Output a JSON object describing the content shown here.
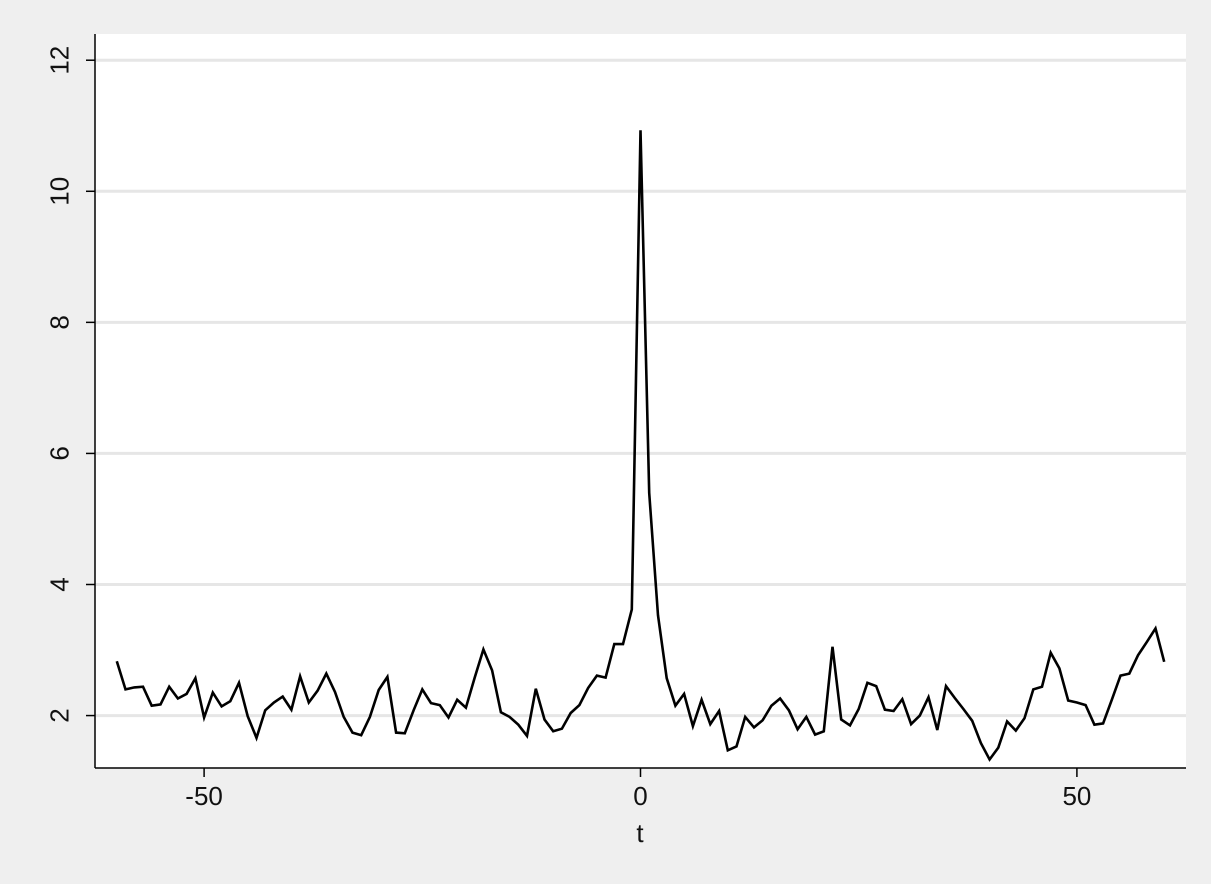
{
  "chart_data": {
    "type": "line",
    "title": "",
    "xlabel": "t",
    "ylabel": "",
    "xlim": [
      -62.5,
      62.5
    ],
    "ylim": [
      1.2,
      12.4
    ],
    "xticks": [
      -50,
      0,
      50
    ],
    "yticks": [
      2,
      4,
      6,
      8,
      10,
      12
    ],
    "grid": true,
    "legend": "none",
    "colors": {
      "background": "#efefef",
      "plot_area": "#ffffff",
      "grid": "#e6e6e6",
      "line": "#000000",
      "axis": "#000000"
    },
    "series": [
      {
        "name": "",
        "x": [
          -60,
          -59,
          -58,
          -57,
          -56,
          -55,
          -54,
          -53,
          -52,
          -51,
          -50,
          -49,
          -48,
          -47,
          -46,
          -45,
          -44,
          -43,
          -42,
          -41,
          -40,
          -39,
          -38,
          -37,
          -36,
          -35,
          -34,
          -33,
          -32,
          -31,
          -30,
          -29,
          -28,
          -27,
          -26,
          -25,
          -24,
          -23,
          -22,
          -21,
          -20,
          -19,
          -18,
          -17,
          -16,
          -15,
          -14,
          -13,
          -12,
          -11,
          -10,
          -9,
          -8,
          -7,
          -6,
          -5,
          -4,
          -3,
          -2,
          -1,
          0,
          1,
          2,
          3,
          4,
          5,
          6,
          7,
          8,
          9,
          10,
          11,
          12,
          13,
          14,
          15,
          16,
          17,
          18,
          19,
          20,
          21,
          22,
          23,
          24,
          25,
          26,
          27,
          28,
          29,
          30,
          31,
          32,
          33,
          34,
          35,
          36,
          37,
          38,
          39,
          40,
          41,
          42,
          43,
          44,
          45,
          46,
          47,
          48,
          49,
          50,
          51,
          52,
          53,
          54,
          55,
          56,
          57,
          58,
          59,
          60
        ],
        "values": [
          2.83,
          2.4,
          2.43,
          2.44,
          2.15,
          2.17,
          2.44,
          2.26,
          2.33,
          2.57,
          1.97,
          2.35,
          2.14,
          2.22,
          2.5,
          1.99,
          1.66,
          2.08,
          2.2,
          2.29,
          2.09,
          2.6,
          2.2,
          2.38,
          2.64,
          2.36,
          1.98,
          1.74,
          1.7,
          1.98,
          2.39,
          2.59,
          1.74,
          1.73,
          2.08,
          2.4,
          2.19,
          2.16,
          1.97,
          2.24,
          2.12,
          2.58,
          3.01,
          2.69,
          2.05,
          1.98,
          1.86,
          1.69,
          2.41,
          1.94,
          1.76,
          1.8,
          2.04,
          2.16,
          2.42,
          2.61,
          2.58,
          3.09,
          3.09,
          3.62,
          10.93,
          5.4,
          3.53,
          2.57,
          2.15,
          2.33,
          1.84,
          2.24,
          1.87,
          2.07,
          1.47,
          1.53,
          1.98,
          1.82,
          1.93,
          2.15,
          2.26,
          2.08,
          1.79,
          1.98,
          1.71,
          1.76,
          3.05,
          1.94,
          1.85,
          2.1,
          2.5,
          2.45,
          2.09,
          2.07,
          2.25,
          1.87,
          2.0,
          2.28,
          1.78,
          2.45,
          2.27,
          2.1,
          1.92,
          1.58,
          1.33,
          1.51,
          1.91,
          1.77,
          1.96,
          2.4,
          2.44,
          2.96,
          2.72,
          2.23,
          2.2,
          2.16,
          1.86,
          1.88,
          2.24,
          2.61,
          2.64,
          2.92,
          3.12,
          3.33,
          2.82
        ]
      }
    ]
  }
}
